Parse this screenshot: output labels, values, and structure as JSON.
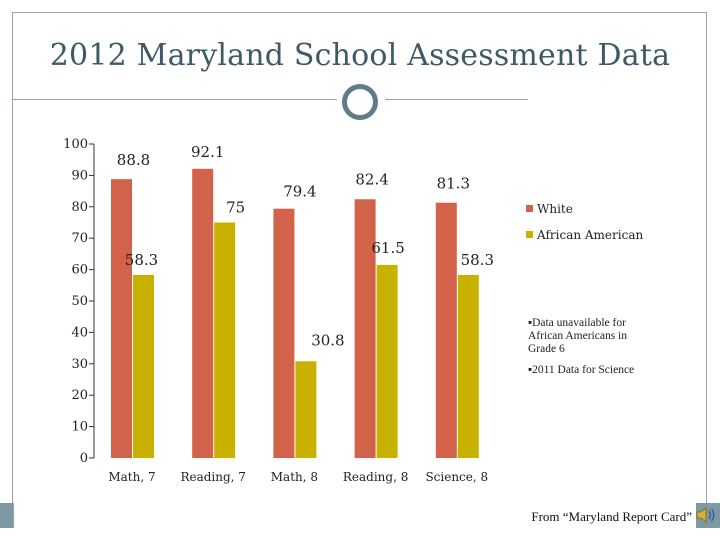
{
  "header": {
    "title": "2012 Maryland School Assessment Data"
  },
  "chart_data": {
    "type": "bar",
    "title": "2012 Maryland School Assessment Data",
    "xlabel": "",
    "ylabel": "",
    "ylim": [
      0,
      100
    ],
    "yticks": [
      0,
      10,
      20,
      30,
      40,
      50,
      60,
      70,
      80,
      90,
      100
    ],
    "categories": [
      "Math, 7",
      "Reading, 7",
      "Math, 8",
      "Reading, 8",
      "Science, 8"
    ],
    "series": [
      {
        "name": "White",
        "color": "#d2634a",
        "values": [
          88.8,
          92.1,
          79.4,
          82.4,
          81.3
        ]
      },
      {
        "name": "African American",
        "color": "#c9b100",
        "values": [
          58.3,
          75,
          30.8,
          61.5,
          58.3
        ]
      }
    ],
    "legend_position": "right",
    "grid": false
  },
  "notes": [
    "▪Data unavailable for African Americans in Grade 6",
    "▪2011 Data for Science"
  ],
  "footer": {
    "source": "From “Maryland Report Card”"
  },
  "icons": {
    "audio": "speaker-icon"
  }
}
